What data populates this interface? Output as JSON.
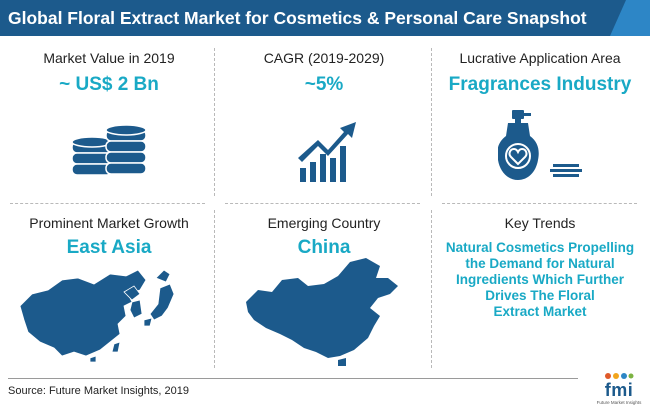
{
  "header": {
    "title": "Global Floral Extract Market for Cosmetics & Personal Care Snapshot"
  },
  "cells": {
    "market_value": {
      "label": "Market Value in 2019",
      "value": "~ US$ 2 Bn"
    },
    "cagr": {
      "label": "CAGR (2019-2029)",
      "value": "~5%"
    },
    "application": {
      "label": "Lucrative Application Area",
      "value": "Fragrances Industry"
    },
    "growth": {
      "label": "Prominent Market Growth",
      "value": "East Asia"
    },
    "country": {
      "label": "Emerging Country",
      "value": "China"
    },
    "trends": {
      "label": "Key Trends",
      "lines": [
        "Natural Cosmetics Propelling",
        "the Demand for Natural",
        "Ingredients Which Further",
        "Drives The Floral",
        "Extract Market"
      ]
    }
  },
  "footer": {
    "source": "Source: Future Market Insights, 2019"
  },
  "logo": {
    "name": "fmi",
    "tagline": "Future Market Insights"
  },
  "colors": {
    "header": "#1c5a8c",
    "accent": "#19a9c5",
    "icon": "#1c5a8c",
    "icon_light": "#2d86c6"
  },
  "icons": {
    "market_value": "coin-stack-icon",
    "cagr": "growth-chart-icon",
    "application": "perfume-bottle-icon",
    "growth": "east-asia-map-icon",
    "country": "china-map-icon"
  }
}
